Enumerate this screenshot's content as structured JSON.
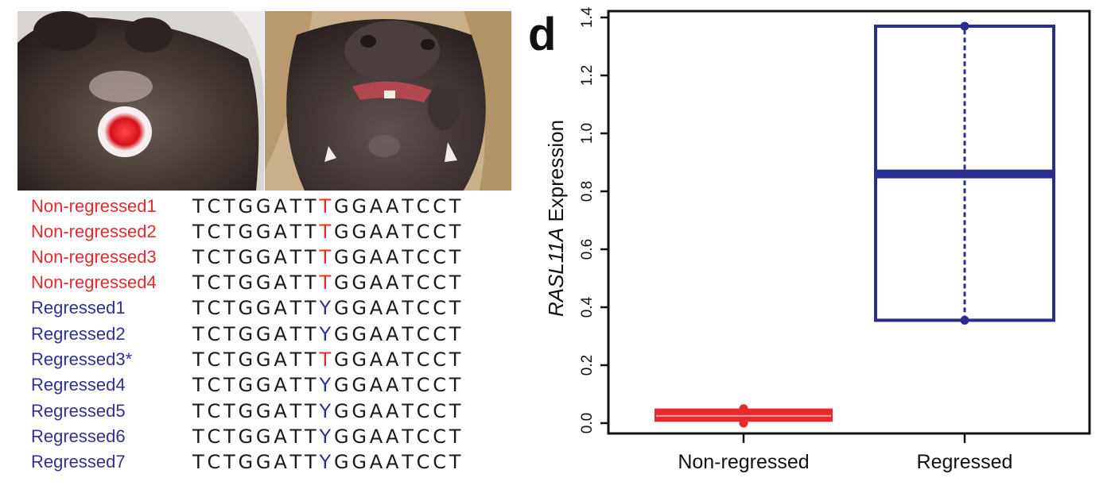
{
  "colors": {
    "non_regressed": "#e8292e",
    "regressed": "#2e3192",
    "regressed_box": "#2b2c8f",
    "sequence_text": "#1a1a1a"
  },
  "photos": {
    "left": "tumour-photo-nonregressed",
    "right": "tumour-photo-regressed"
  },
  "sequences": [
    {
      "label": "Non-regressed1",
      "group": "non_regressed",
      "bases": [
        "T",
        "C",
        "T",
        "G",
        "G",
        "A",
        "T",
        "T",
        "T",
        "G",
        "G",
        "A",
        "A",
        "T",
        "C",
        "C",
        "T"
      ],
      "variant": "T"
    },
    {
      "label": "Non-regressed2",
      "group": "non_regressed",
      "bases": [
        "T",
        "C",
        "T",
        "G",
        "G",
        "A",
        "T",
        "T",
        "T",
        "G",
        "G",
        "A",
        "A",
        "T",
        "C",
        "C",
        "T"
      ],
      "variant": "T"
    },
    {
      "label": "Non-regressed3",
      "group": "non_regressed",
      "bases": [
        "T",
        "C",
        "T",
        "G",
        "G",
        "A",
        "T",
        "T",
        "T",
        "G",
        "G",
        "A",
        "A",
        "T",
        "C",
        "C",
        "T"
      ],
      "variant": "T"
    },
    {
      "label": "Non-regressed4",
      "group": "non_regressed",
      "bases": [
        "T",
        "C",
        "T",
        "G",
        "G",
        "A",
        "T",
        "T",
        "T",
        "G",
        "G",
        "A",
        "A",
        "T",
        "C",
        "C",
        "T"
      ],
      "variant": "T"
    },
    {
      "label": "Regressed1",
      "group": "regressed",
      "bases": [
        "T",
        "C",
        "T",
        "G",
        "G",
        "A",
        "T",
        "T",
        "Y",
        "G",
        "G",
        "A",
        "A",
        "T",
        "C",
        "C",
        "T"
      ],
      "variant": "Y"
    },
    {
      "label": "Regressed2",
      "group": "regressed",
      "bases": [
        "T",
        "C",
        "T",
        "G",
        "G",
        "A",
        "T",
        "T",
        "Y",
        "G",
        "G",
        "A",
        "A",
        "T",
        "C",
        "C",
        "T"
      ],
      "variant": "Y"
    },
    {
      "label": "Regressed3*",
      "group": "regressed",
      "bases": [
        "T",
        "C",
        "T",
        "G",
        "G",
        "A",
        "T",
        "T",
        "T",
        "G",
        "G",
        "A",
        "A",
        "T",
        "C",
        "C",
        "T"
      ],
      "variant": "T"
    },
    {
      "label": "Regressed4",
      "group": "regressed",
      "bases": [
        "T",
        "C",
        "T",
        "G",
        "G",
        "A",
        "T",
        "T",
        "Y",
        "G",
        "G",
        "A",
        "A",
        "T",
        "C",
        "C",
        "T"
      ],
      "variant": "Y"
    },
    {
      "label": "Regressed5",
      "group": "regressed",
      "bases": [
        "T",
        "C",
        "T",
        "G",
        "G",
        "A",
        "T",
        "T",
        "Y",
        "G",
        "G",
        "A",
        "A",
        "T",
        "C",
        "C",
        "T"
      ],
      "variant": "Y"
    },
    {
      "label": "Regressed6",
      "group": "regressed",
      "bases": [
        "T",
        "C",
        "T",
        "G",
        "G",
        "A",
        "T",
        "T",
        "Y",
        "G",
        "G",
        "A",
        "A",
        "T",
        "C",
        "C",
        "T"
      ],
      "variant": "Y"
    },
    {
      "label": "Regressed7",
      "group": "regressed",
      "bases": [
        "T",
        "C",
        "T",
        "G",
        "G",
        "A",
        "T",
        "T",
        "Y",
        "G",
        "G",
        "A",
        "A",
        "T",
        "C",
        "C",
        "T"
      ],
      "variant": "Y"
    }
  ],
  "panel_letter": "d",
  "chart_data": {
    "type": "box",
    "ylabel_italic": "RASL11A",
    "ylabel_rest": " Expression",
    "xlabel": "",
    "ylim": [
      0.0,
      1.4
    ],
    "yticks": [
      0.0,
      0.2,
      0.4,
      0.6,
      0.8,
      1.0,
      1.2,
      1.4
    ],
    "ytick_labels": [
      "0.0",
      "0.2",
      "0.4",
      "0.6",
      "0.8",
      "1.0",
      "1.2",
      "1.4"
    ],
    "categories": [
      "Non-regressed",
      "Regressed"
    ],
    "boxes": [
      {
        "name": "Non-regressed",
        "color_key": "non_regressed",
        "whisker_low": 0.0,
        "q1": 0.01,
        "median": 0.025,
        "q3": 0.045,
        "whisker_high": 0.05,
        "points": [
          0.0,
          0.05
        ]
      },
      {
        "name": "Regressed",
        "color_key": "regressed_box",
        "whisker_low": 0.355,
        "q1": 0.355,
        "median": 0.86,
        "q3": 1.37,
        "whisker_high": 1.37,
        "points": [
          0.355,
          1.37
        ]
      }
    ]
  }
}
